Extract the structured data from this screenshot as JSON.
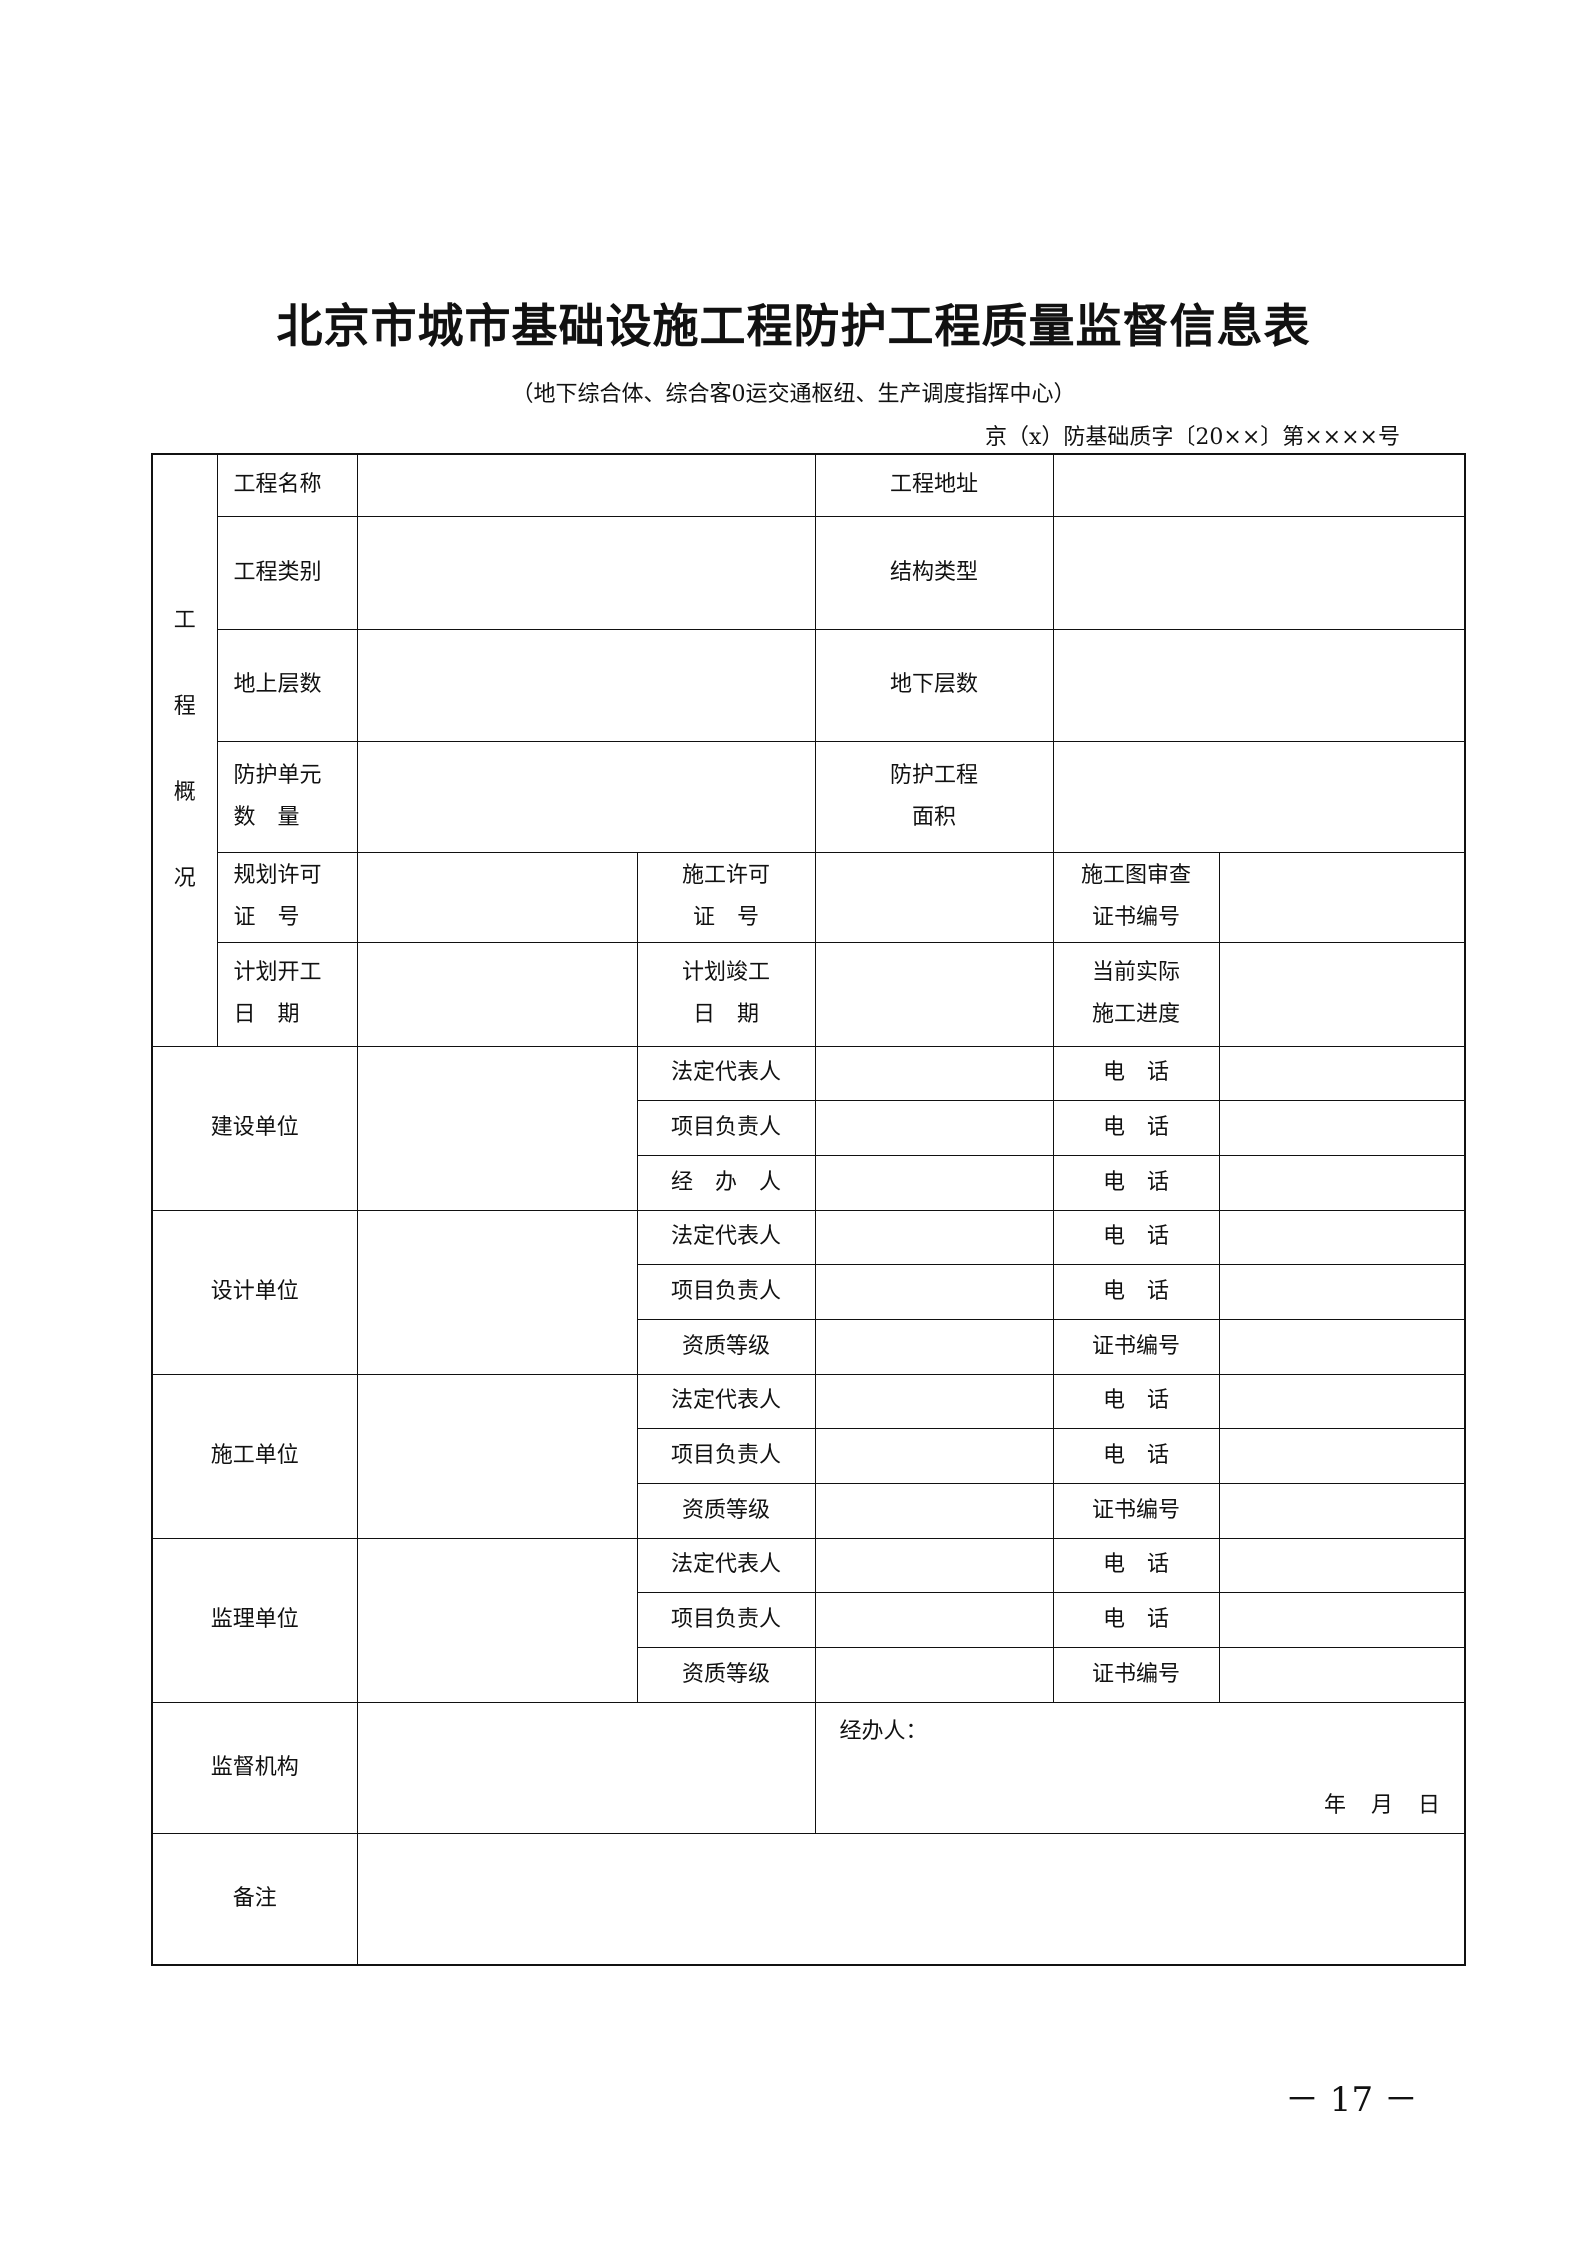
{
  "title": "北京市城市基础设施工程防护工程质量监督信息表",
  "subtitle": "（地下综合体、综合客0运交通枢纽、生产调度指挥中心）",
  "doc_number": "京（x）防基础质字〔20××〕第××××号",
  "overview": {
    "group": "工\n程\n概\n况",
    "name": "工程名称",
    "address": "工程地址",
    "category": "工程类别",
    "structure": "结构类型",
    "above": "地上层数",
    "below": "地下层数",
    "units": "防护单元\n数　量",
    "area": "防护工程\n面积",
    "plan_permit": "规划许可\n证　号",
    "build_permit": "施工许可\n证　号",
    "review_cert": "施工图审查\n证书编号",
    "plan_start": "计划开工\n日　期",
    "plan_end": "计划竣工\n日　期",
    "progress": "当前实际\n施工进度"
  },
  "units": [
    {
      "name": "建设单位",
      "rows": [
        [
          "法定代表人",
          "电　话"
        ],
        [
          "项目负责人",
          "电　话"
        ],
        [
          "经　办　人",
          "电　话"
        ]
      ]
    },
    {
      "name": "设计单位",
      "rows": [
        [
          "法定代表人",
          "电　话"
        ],
        [
          "项目负责人",
          "电　话"
        ],
        [
          "资质等级",
          "证书编号"
        ]
      ]
    },
    {
      "name": "施工单位",
      "rows": [
        [
          "法定代表人",
          "电　话"
        ],
        [
          "项目负责人",
          "电　话"
        ],
        [
          "资质等级",
          "证书编号"
        ]
      ]
    },
    {
      "name": "监理单位",
      "rows": [
        [
          "法定代表人",
          "电　话"
        ],
        [
          "项目负责人",
          "电　话"
        ],
        [
          "资质等级",
          "证书编号"
        ]
      ]
    }
  ],
  "supervision": {
    "label": "监督机构",
    "handler": "经办人：",
    "date": "年 月 日"
  },
  "remarks": {
    "label": "备注"
  },
  "page_number": "－ 17 －"
}
